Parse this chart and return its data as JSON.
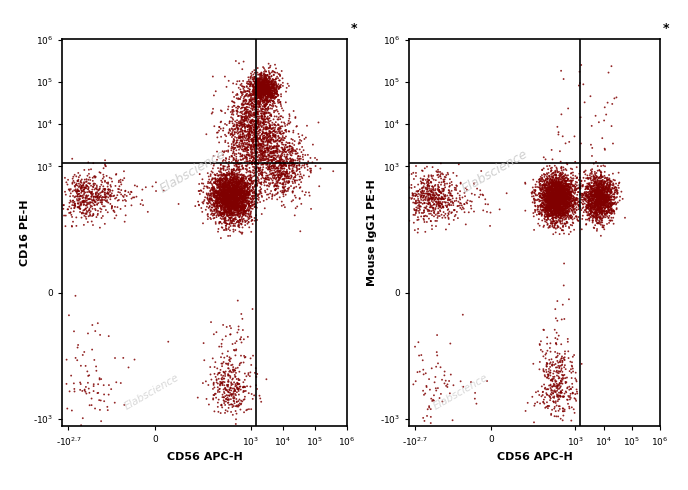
{
  "fig_width": 6.88,
  "fig_height": 4.9,
  "dpi": 100,
  "background_color": "#ffffff",
  "plots": [
    {
      "xlabel": "CD56 APC-H",
      "ylabel": "CD16 PE-H",
      "gate_x_data": 1500,
      "gate_y_data": 1200
    },
    {
      "xlabel": "CD56 APC-H",
      "ylabel": "Mouse IgG1 PE-H",
      "gate_x_data": 1500,
      "gate_y_data": 1200
    }
  ],
  "watermark": "Elabscience",
  "watermark_color": "#c8c8c8",
  "x_tick_data": [
    -500,
    0,
    1000,
    10000,
    100000,
    1000000
  ],
  "x_tick_labels": [
    "-10$^{2.7}$",
    "0",
    "10$^3$",
    "10$^4$",
    "10$^5$",
    "10$^6$"
  ],
  "y_tick_data": [
    -1000,
    0,
    1000,
    10000,
    100000,
    1000000
  ],
  "y_tick_labels": [
    "-10$^3$",
    "0",
    "10$^3$",
    "10$^4$",
    "10$^5$",
    "10$^6$"
  ]
}
